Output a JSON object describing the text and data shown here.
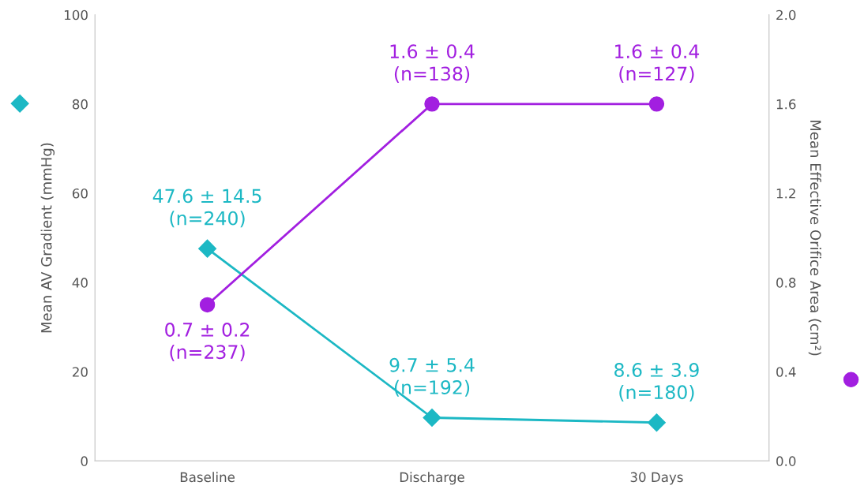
{
  "chart_data": {
    "type": "line",
    "categories": [
      "Baseline",
      "Discharge",
      "30 Days"
    ],
    "ylabel": "Mean AV Gradient (mmHg)",
    "y2label": "Mean Effective Orifice Area (cm²)",
    "ylim": [
      0,
      100
    ],
    "yticks": [
      0,
      20,
      40,
      60,
      80,
      100
    ],
    "y2lim": [
      0,
      2.0
    ],
    "y2ticks": [
      {
        "value": 0,
        "label": "0.0"
      },
      {
        "value": 0.4,
        "label": "0.4"
      },
      {
        "value": 0.8,
        "label": "0.8"
      },
      {
        "value": 1.2,
        "label": "1.2"
      },
      {
        "value": 1.6,
        "label": "1.6"
      },
      {
        "value": 2.0,
        "label": "2.0"
      }
    ],
    "grid": false,
    "line_style": "solid",
    "series": [
      {
        "color": "#1cb8c4",
        "marker": "diamond",
        "values": [
          47.6,
          9.7,
          8.6
        ],
        "value_labels": [
          "47.6 ± 14.5\n(n=240)",
          "9.7 ± 5.4\n(n=192)",
          "8.6 ± 3.9\n(n=180)"
        ]
      },
      {
        "color": "#a21fe0",
        "marker": "circle",
        "axis": "y2",
        "values": [
          0.7,
          1.6,
          1.6
        ],
        "value_labels": [
          "0.7 ± 0.2\n(n=237)",
          "1.6 ± 0.4\n(n=138)",
          "1.6 ± 0.4\n(n=127)"
        ]
      }
    ]
  }
}
